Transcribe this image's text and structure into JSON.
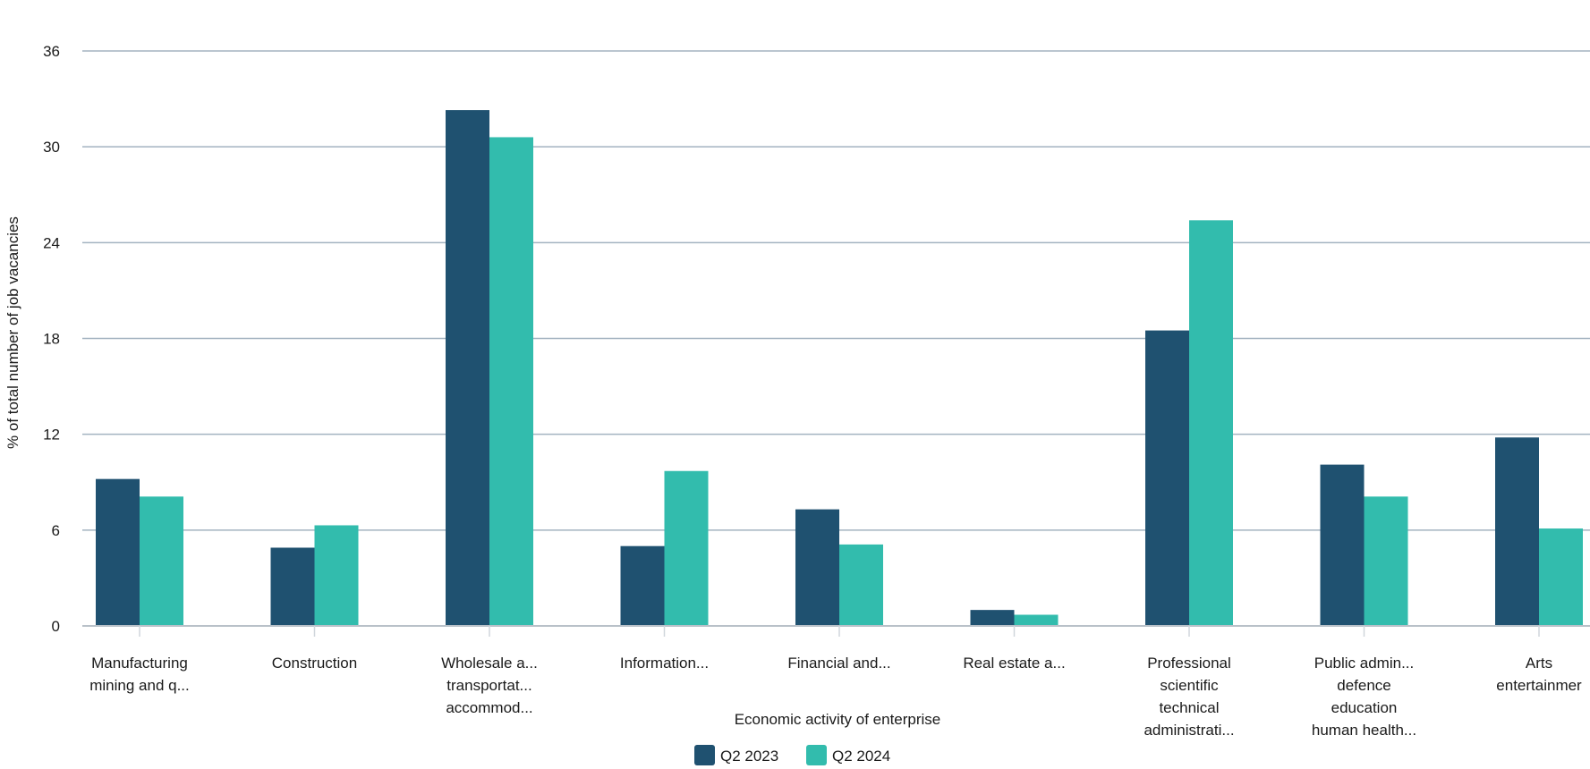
{
  "chart_data": {
    "type": "bar",
    "title": "",
    "xlabel": "Economic activity of enterprise",
    "ylabel": "% of total number of job vacancies",
    "ylim": [
      0,
      36
    ],
    "yticks": [
      0,
      6,
      12,
      18,
      24,
      30,
      36
    ],
    "grid": true,
    "legend_position": "bottom-center",
    "categories": [
      [
        "Manufacturing",
        "mining and q..."
      ],
      [
        "Construction"
      ],
      [
        "Wholesale a...",
        "transportat...",
        "accommod..."
      ],
      [
        "Information..."
      ],
      [
        "Financial and..."
      ],
      [
        "Real estate a..."
      ],
      [
        "Professional",
        "scientific",
        "technical",
        "administrati..."
      ],
      [
        "Public admin...",
        "defence",
        "education",
        "human health..."
      ],
      [
        "Arts",
        "entertainmer"
      ]
    ],
    "series": [
      {
        "name": "Q2 2023",
        "color": "#1f5170",
        "values": [
          9.2,
          4.9,
          32.3,
          5.0,
          7.3,
          1.0,
          18.5,
          10.1,
          11.8
        ]
      },
      {
        "name": "Q2 2024",
        "color": "#32bcad",
        "values": [
          8.1,
          6.3,
          30.6,
          9.7,
          5.1,
          0.7,
          25.4,
          8.1,
          6.1
        ]
      }
    ]
  }
}
